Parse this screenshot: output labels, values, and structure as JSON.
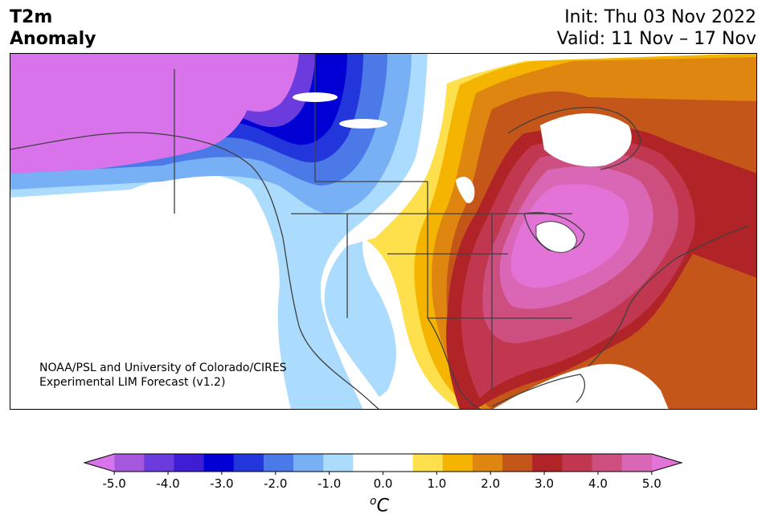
{
  "header": {
    "title_line1": "T2m",
    "title_line2": "Anomaly",
    "init": "Init: Thu 03 Nov 2022",
    "valid": "Valid: 11 Nov – 17 Nov"
  },
  "credit": {
    "line1": "NOAA/PSL and University of Colorado/CIRES",
    "line2": "Experimental LIM Forecast (v1.2)"
  },
  "colorbar": {
    "colors": [
      "#d873ec",
      "#a558de",
      "#6b3bde",
      "#3d1ed5",
      "#0000d4",
      "#2336dc",
      "#4b79e8",
      "#78b0f5",
      "#abdbfd",
      "#ffffff",
      "#ffffff",
      "#fde04c",
      "#f4b400",
      "#df8611",
      "#c4561a",
      "#b02326",
      "#c23750",
      "#cd4f7f",
      "#d967b6",
      "#e473d8"
    ],
    "ticks": [
      "-5.0",
      "-4.0",
      "-3.0",
      "-2.0",
      "-1.0",
      "0.0",
      "1.0",
      "2.0",
      "3.0",
      "4.0",
      "5.0"
    ],
    "unit_base": "C",
    "unit_sup": "o"
  },
  "map": {
    "region": "North America",
    "background_color": "#ffffff",
    "border_color": "#404040"
  }
}
